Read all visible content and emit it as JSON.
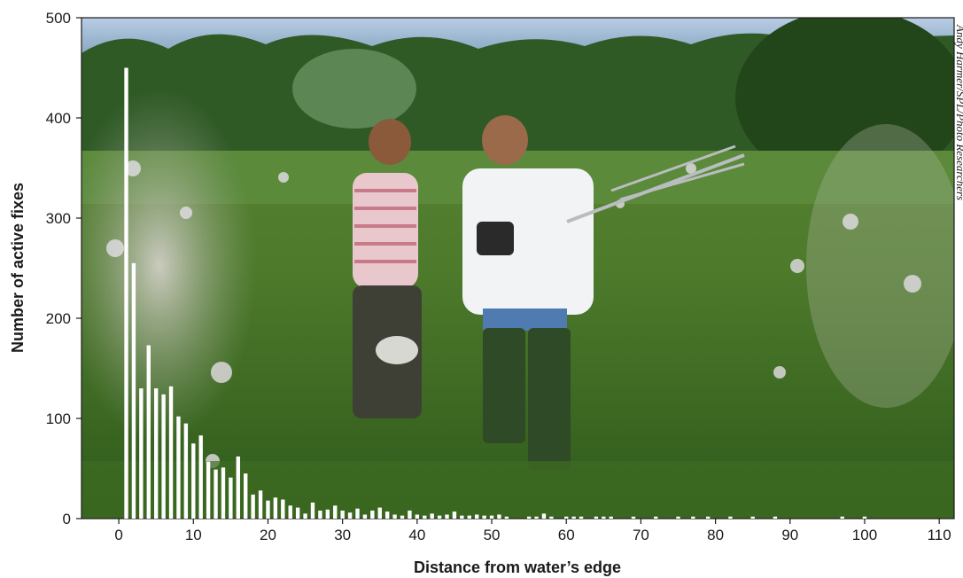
{
  "chart_data": {
    "type": "bar",
    "title": "",
    "xlabel": "Distance from water’s edge",
    "ylabel": "Number of active fixes",
    "xlim": [
      -5,
      112
    ],
    "ylim": [
      0,
      500
    ],
    "x_ticks": [
      0,
      10,
      20,
      30,
      40,
      50,
      60,
      70,
      80,
      90,
      100,
      110
    ],
    "y_ticks": [
      0,
      100,
      200,
      300,
      400,
      500
    ],
    "bar_color": "#ffffff",
    "background": "photograph of two researchers with a radio-tracking antenna in riverside vegetation",
    "grid": false,
    "x": [
      1,
      2,
      3,
      4,
      5,
      6,
      7,
      8,
      9,
      10,
      11,
      12,
      13,
      14,
      15,
      16,
      17,
      18,
      19,
      20,
      21,
      22,
      23,
      24,
      25,
      26,
      27,
      28,
      29,
      30,
      31,
      32,
      33,
      34,
      35,
      36,
      37,
      38,
      39,
      40,
      41,
      42,
      43,
      44,
      45,
      46,
      47,
      48,
      49,
      50,
      51,
      52,
      55,
      56,
      57,
      58,
      60,
      61,
      62,
      64,
      65,
      66,
      69,
      72,
      75,
      77,
      79,
      82,
      85,
      88,
      97,
      100
    ],
    "values": [
      450,
      255,
      130,
      173,
      130,
      124,
      132,
      102,
      95,
      75,
      83,
      57,
      49,
      51,
      41,
      62,
      45,
      24,
      28,
      18,
      21,
      19,
      13,
      11,
      5,
      16,
      8,
      9,
      13,
      8,
      6,
      10,
      4,
      8,
      11,
      7,
      4,
      3,
      8,
      4,
      3,
      5,
      3,
      4,
      7,
      3,
      3,
      4,
      3,
      3,
      4,
      2,
      2,
      2,
      5,
      2,
      2,
      2,
      2,
      2,
      2,
      2,
      2,
      2,
      2,
      2,
      2,
      2,
      2,
      2,
      2,
      2
    ]
  },
  "credit": "Andy Harmer/SPL/Photo Researchers"
}
